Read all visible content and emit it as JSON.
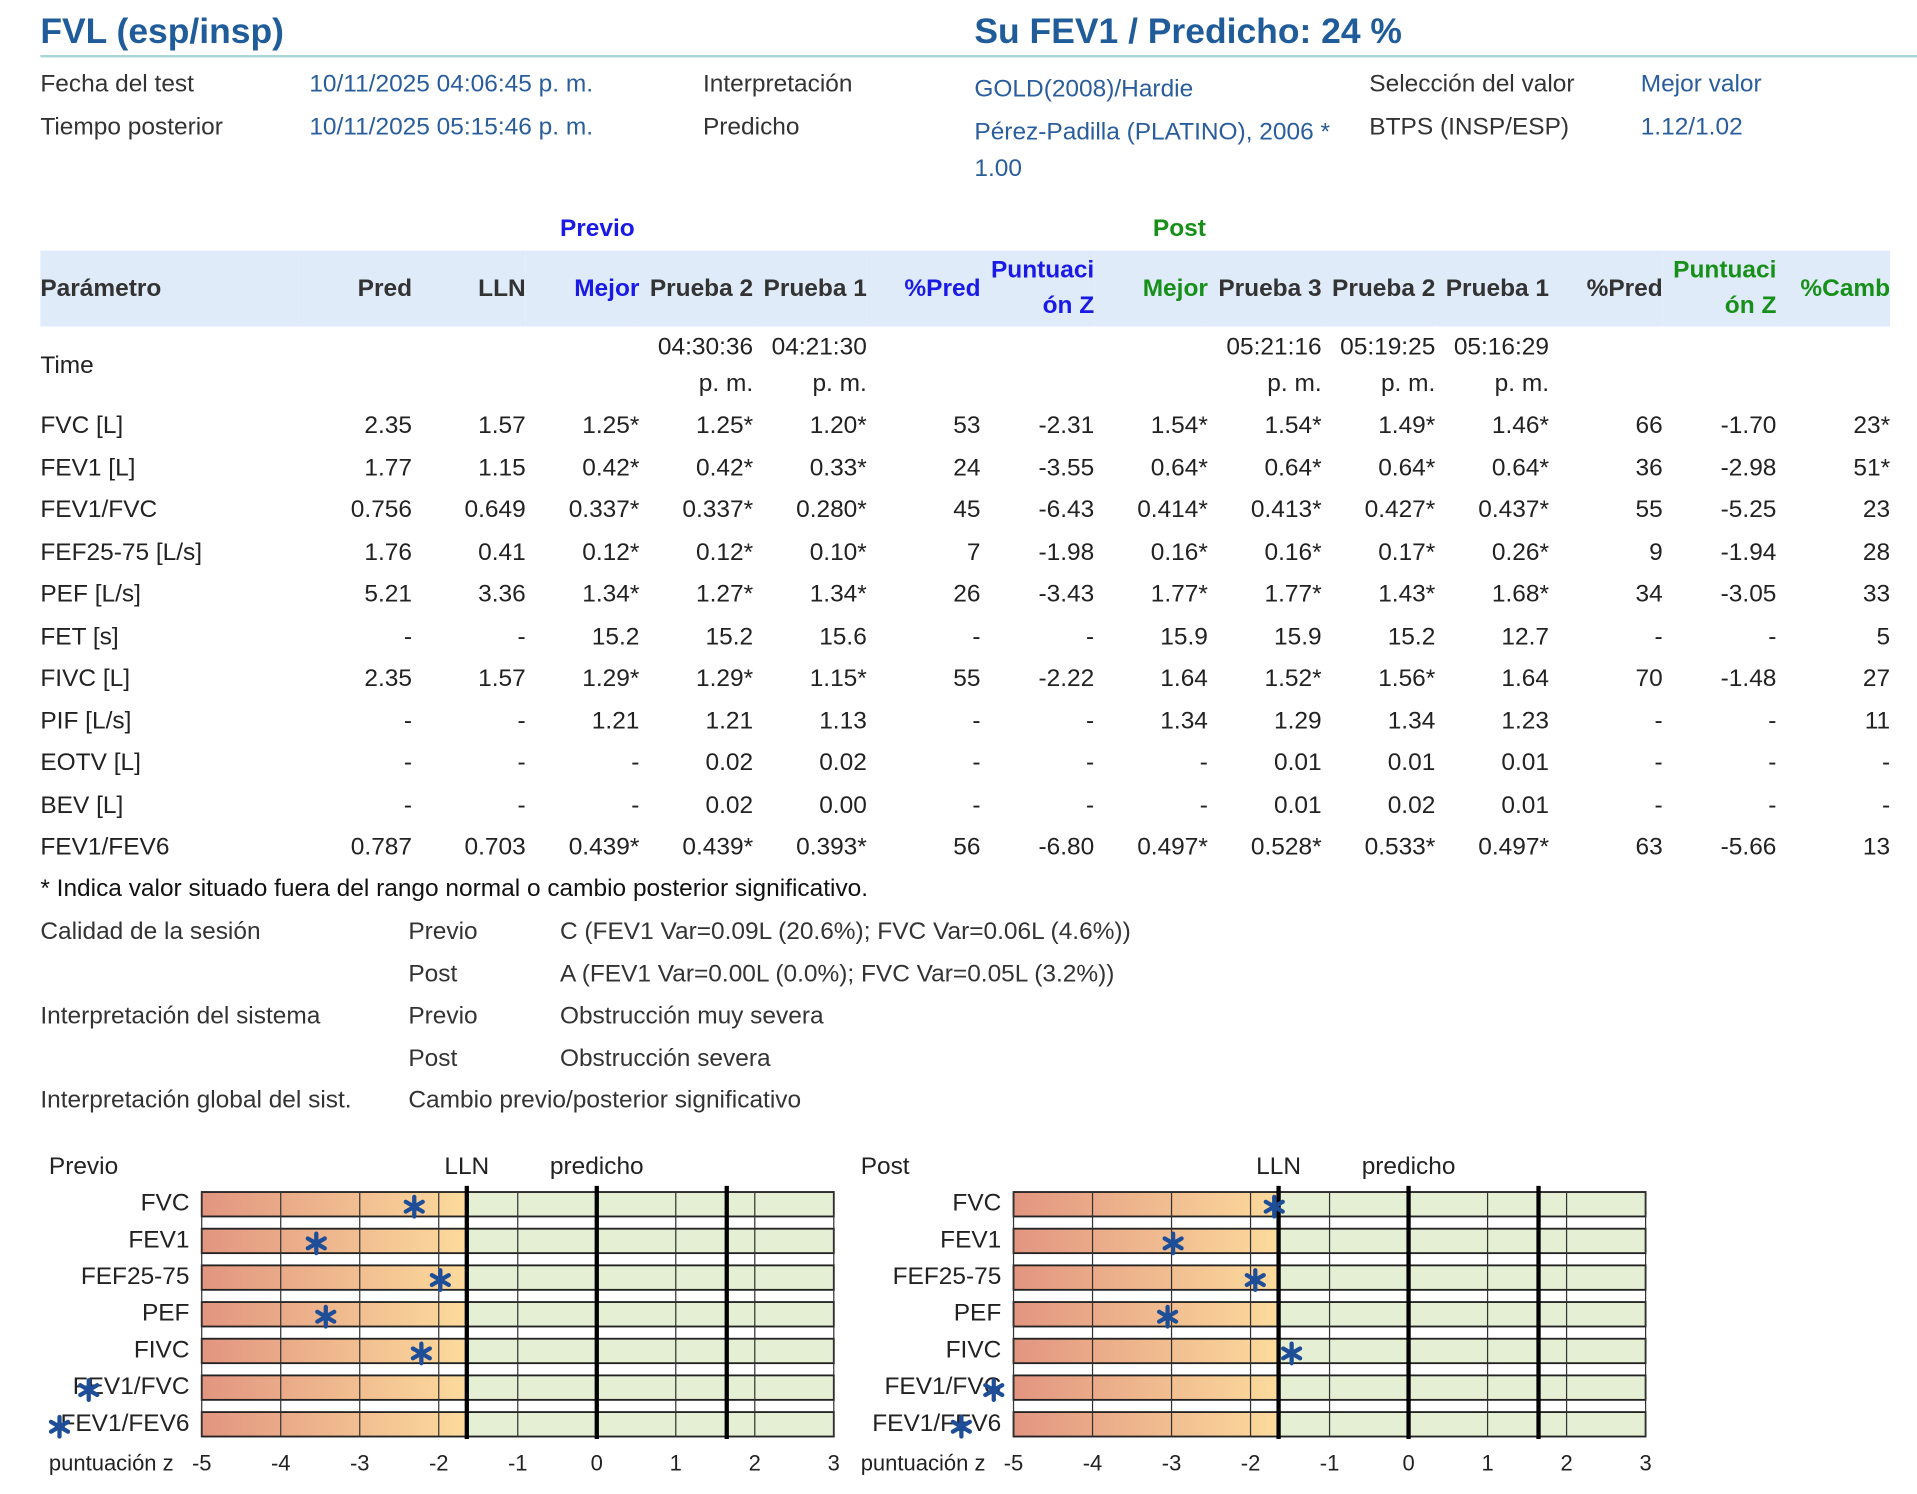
{
  "header": {
    "title": "FVL (esp/insp)",
    "summary": "Su FEV1 / Predicho: 24 %"
  },
  "info": [
    [
      "Fecha del test",
      "10/11/2025 04:06:45 p. m.",
      "Interpretación",
      "GOLD(2008)/Hardie",
      "Selección del valor",
      "Mejor valor"
    ],
    [
      "Tiempo posterior",
      "10/11/2025 05:15:46 p. m.",
      "Predicho",
      "Pérez-Padilla (PLATINO), 2006 * 1.00",
      "BTPS (INSP/ESP)",
      "1.12/1.02"
    ]
  ],
  "table": {
    "groups": [
      "Previo",
      "Post"
    ],
    "columns": [
      "Parámetro",
      "Pred",
      "LLN",
      "Mejor",
      "Prueba 2",
      "Prueba 1",
      "%Pred",
      "Puntuación Z",
      "Mejor",
      "Prueba 3",
      "Prueba 2",
      "Prueba 1",
      "%Pred",
      "Puntuación Z",
      "%Camb"
    ],
    "rows": [
      [
        "Time",
        null,
        null,
        null,
        "04:30:36 p. m.",
        "04:21:30 p. m.",
        null,
        null,
        null,
        "05:21:16 p. m.",
        "05:19:25 p. m.",
        "05:16:29 p. m.",
        null,
        null,
        null
      ],
      [
        "FVC [L]",
        "2.35",
        "1.57",
        "1.25*",
        "1.25*",
        "1.20*",
        "53",
        "-2.31",
        "1.54*",
        "1.54*",
        "1.49*",
        "1.46*",
        "66",
        "-1.70",
        "23*"
      ],
      [
        "FEV1 [L]",
        "1.77",
        "1.15",
        "0.42*",
        "0.42*",
        "0.33*",
        "24",
        "-3.55",
        "0.64*",
        "0.64*",
        "0.64*",
        "0.64*",
        "36",
        "-2.98",
        "51*"
      ],
      [
        "FEV1/FVC",
        "0.756",
        "0.649",
        "0.337*",
        "0.337*",
        "0.280*",
        "45",
        "-6.43",
        "0.414*",
        "0.413*",
        "0.427*",
        "0.437*",
        "55",
        "-5.25",
        "23"
      ],
      [
        "FEF25-75 [L/s]",
        "1.76",
        "0.41",
        "0.12*",
        "0.12*",
        "0.10*",
        "7",
        "-1.98",
        "0.16*",
        "0.16*",
        "0.17*",
        "0.26*",
        "9",
        "-1.94",
        "28"
      ],
      [
        "PEF [L/s]",
        "5.21",
        "3.36",
        "1.34*",
        "1.27*",
        "1.34*",
        "26",
        "-3.43",
        "1.77*",
        "1.77*",
        "1.43*",
        "1.68*",
        "34",
        "-3.05",
        "33"
      ],
      [
        "FET [s]",
        "-",
        "-",
        "15.2",
        "15.2",
        "15.6",
        "-",
        "-",
        "15.9",
        "15.9",
        "15.2",
        "12.7",
        "-",
        "-",
        "5"
      ],
      [
        "FIVC [L]",
        "2.35",
        "1.57",
        "1.29*",
        "1.29*",
        "1.15*",
        "55",
        "-2.22",
        "1.64",
        "1.52*",
        "1.56*",
        "1.64",
        "70",
        "-1.48",
        "27"
      ],
      [
        "PIF [L/s]",
        "-",
        "-",
        "1.21",
        "1.21",
        "1.13",
        "-",
        "-",
        "1.34",
        "1.29",
        "1.34",
        "1.23",
        "-",
        "-",
        "11"
      ],
      [
        "EOTV [L]",
        "-",
        "-",
        "-",
        "0.02",
        "0.02",
        "-",
        "-",
        "-",
        "0.01",
        "0.01",
        "0.01",
        "-",
        "-",
        "-"
      ],
      [
        "BEV [L]",
        "-",
        "-",
        "-",
        "0.02",
        "0.00",
        "-",
        "-",
        "-",
        "0.01",
        "0.02",
        "0.01",
        "-",
        "-",
        "-"
      ],
      [
        "FEV1/FEV6",
        "0.787",
        "0.703",
        "0.439*",
        "0.439*",
        "0.393*",
        "56",
        "-6.80",
        "0.497*",
        "0.528*",
        "0.533*",
        "0.497*",
        "63",
        "-5.66",
        "13"
      ]
    ]
  },
  "footnote": "* Indica valor situado fuera del rango normal o cambio posterior significativo.",
  "session": [
    [
      "Calidad de la sesión",
      "Previo",
      "C (FEV1 Var=0.09L (20.6%); FVC Var=0.06L (4.6%))"
    ],
    [
      null,
      "Post",
      "A (FEV1 Var=0.00L (0.0%); FVC Var=0.05L (3.2%))"
    ],
    [
      "Interpretación del sistema",
      "Previo",
      "Obstrucción muy severa"
    ],
    [
      null,
      "Post",
      "Obstrucción severa"
    ],
    [
      "Interpretación global del sist.",
      "Cambio previo/posterior significativo",
      null
    ]
  ],
  "chart_data": [
    {
      "type": "zscore",
      "title": "Previo",
      "categories": [
        "FVC",
        "FEV1",
        "FEF25-75",
        "PEF",
        "FIVC",
        "FEV1/FVC",
        "FEV1/FEV6"
      ],
      "values": [
        -2.31,
        -3.55,
        -1.98,
        -3.43,
        -2.22,
        -6.43,
        -6.8
      ],
      "color": "#1f4e99",
      "xlim": [
        -5,
        3
      ],
      "xticks": [
        -5,
        -4,
        -3,
        -2,
        -1,
        0,
        1,
        2,
        3
      ],
      "xlabel": "puntuación z",
      "lln_label": "LLN",
      "pred_label": "predicho",
      "lln": -1.645,
      "pred": 0,
      "uln": 1.645
    },
    {
      "type": "zscore",
      "title": "Post",
      "categories": [
        "FVC",
        "FEV1",
        "FEF25-75",
        "PEF",
        "FIVC",
        "FEV1/FVC",
        "FEV1/FEV6"
      ],
      "values": [
        -1.7,
        -2.98,
        -1.94,
        -3.05,
        -1.48,
        -5.25,
        -5.66
      ],
      "color": "#1f4e99",
      "xlim": [
        -5,
        3
      ],
      "xticks": [
        -5,
        -4,
        -3,
        -2,
        -1,
        0,
        1,
        2,
        3
      ],
      "xlabel": "puntuación z",
      "lln_label": "LLN",
      "pred_label": "predicho",
      "lln": -1.645,
      "pred": 0,
      "uln": 1.645
    }
  ]
}
